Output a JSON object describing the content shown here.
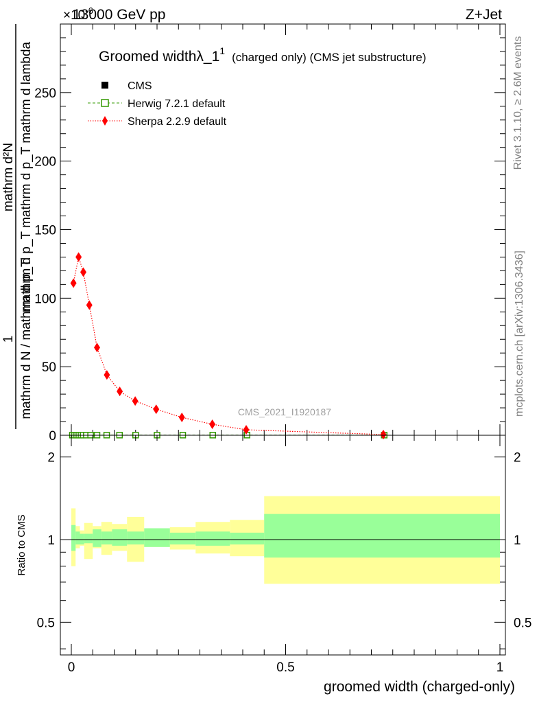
{
  "header": {
    "energy_label": "13000 GeV pp",
    "exponent_label": "×10",
    "exponent_power": "-6",
    "process_label": "Z+Jet"
  },
  "side_labels": {
    "rivet": "Rivet 3.1.10, ≥ 2.6M events",
    "mcplots": "mcplots.cern.ch [arXiv:1306.3436]"
  },
  "main_plot": {
    "title": "Groomed widthλ_1",
    "title_sup": "1",
    "title_suffix": "(charged only) (CMS jet substructure)",
    "watermark": "CMS_2021_I1920187",
    "ylabel_numerator": "mathrm d²N",
    "ylabel_denominator": "mathrm d p_T mathrm d p_T mathrm d lambda",
    "ylabel_prefix_num": "1",
    "ylabel_prefix_den": "mathrm d N / mathrm d p_T"
  },
  "legend": {
    "entries": [
      {
        "label": "CMS",
        "marker": "square-filled",
        "color": "#000000"
      },
      {
        "label": "Herwig 7.2.1 default",
        "marker": "square-open",
        "color": "#339900"
      },
      {
        "label": "Sherpa 2.2.9 default",
        "marker": "diamond",
        "color": "#ff0000"
      }
    ]
  },
  "ratio_plot": {
    "ylabel": "Ratio to CMS",
    "xlabel": "groomed width (charged-only)"
  },
  "chart_data": [
    {
      "type": "line",
      "title": "Groomed widthλ_1^1 (charged only) (CMS jet substructure)",
      "xlim": [
        0,
        1
      ],
      "ylim": [
        0,
        300
      ],
      "y_scale_factor": "×10^-6",
      "y_ticks": [
        0,
        50,
        100,
        150,
        200,
        250
      ],
      "x_ticks": [
        0,
        0.5,
        1
      ],
      "series": [
        {
          "name": "CMS",
          "color": "#000000",
          "x": [
            0.0025,
            0.0075,
            0.0125,
            0.0175,
            0.0225,
            0.0275,
            0.035,
            0.045,
            0.06,
            0.0825,
            0.1125,
            0.15,
            0.2,
            0.26,
            0.33,
            0.41,
            0.73
          ],
          "y": [
            0.1,
            0.1,
            0.1,
            0.1,
            0.1,
            0.1,
            0.1,
            0.1,
            0.1,
            0.1,
            0.1,
            0.1,
            0.1,
            0.1,
            0.1,
            0.1,
            0.1
          ]
        },
        {
          "name": "Herwig 7.2.1 default",
          "color": "#339900",
          "x": [
            0.0025,
            0.0075,
            0.0125,
            0.0175,
            0.0225,
            0.0275,
            0.035,
            0.045,
            0.06,
            0.0825,
            0.1125,
            0.15,
            0.2,
            0.26,
            0.33,
            0.41,
            0.73
          ],
          "y": [
            0.1,
            0.1,
            0.1,
            0.1,
            0.1,
            0.1,
            0.1,
            0.1,
            0.1,
            0.1,
            0.1,
            0.1,
            0.1,
            0.1,
            0.1,
            0.1,
            0.1
          ]
        },
        {
          "name": "Sherpa 2.2.9 default",
          "color": "#ff0000",
          "x": [
            0.005,
            0.017,
            0.028,
            0.042,
            0.06,
            0.083,
            0.113,
            0.149,
            0.198,
            0.258,
            0.329,
            0.408,
            0.728
          ],
          "y": [
            111,
            130,
            119,
            95,
            64,
            44,
            32,
            25,
            19,
            13,
            8,
            4,
            0.5
          ]
        }
      ]
    },
    {
      "type": "area",
      "ylabel": "Ratio to CMS",
      "xlabel": "groomed width (charged-only)",
      "xlim": [
        0,
        1
      ],
      "ylim": [
        0.38,
        2.4
      ],
      "y_ticks": [
        0.5,
        1,
        2
      ],
      "x_ticks": [
        0,
        0.5,
        1
      ],
      "bin_edges": [
        0,
        0.01,
        0.02,
        0.03,
        0.05,
        0.07,
        0.095,
        0.13,
        0.17,
        0.23,
        0.29,
        0.37,
        0.45,
        1.0
      ],
      "inner_band": {
        "name": "stat",
        "color": "#99ff99",
        "low": [
          0.91,
          0.96,
          0.96,
          0.97,
          0.94,
          0.96,
          0.95,
          0.96,
          0.94,
          0.96,
          0.95,
          0.96,
          0.86
        ],
        "high": [
          1.13,
          1.07,
          1.05,
          1.05,
          1.09,
          1.07,
          1.09,
          1.07,
          1.1,
          1.06,
          1.07,
          1.06,
          1.24
        ]
      },
      "outer_band": {
        "name": "total",
        "color": "#ffff99",
        "low": [
          0.8,
          0.93,
          0.95,
          0.85,
          0.93,
          0.88,
          0.91,
          0.83,
          0.94,
          0.92,
          0.89,
          0.87,
          0.69
        ],
        "high": [
          1.3,
          1.12,
          1.08,
          1.15,
          1.12,
          1.16,
          1.14,
          1.21,
          1.08,
          1.11,
          1.16,
          1.18,
          1.44
        ]
      },
      "reference_line": 1
    }
  ]
}
